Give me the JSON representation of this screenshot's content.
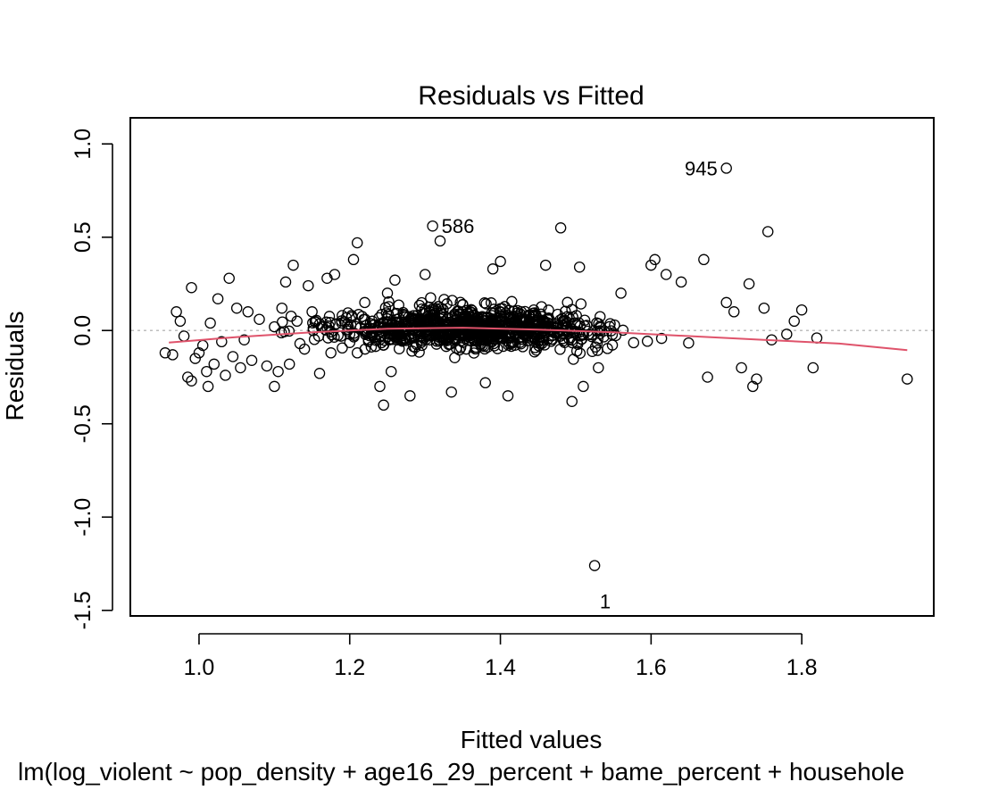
{
  "chart_data": {
    "type": "scatter",
    "title": "Residuals vs Fitted",
    "xlabel": "Fitted values",
    "ylabel": "Residuals",
    "subtitle": "lm(log_violent ~ pop_density + age16_29_percent + bame_percent + househole",
    "xlim": [
      0.91,
      1.974
    ],
    "ylim": [
      -1.525,
      1.135
    ],
    "x_ticks": [
      1.0,
      1.2,
      1.4,
      1.6,
      1.8
    ],
    "x_tick_labels": [
      "1.0",
      "1.2",
      "1.4",
      "1.6",
      "1.8"
    ],
    "y_ticks": [
      -1.5,
      -1.0,
      -0.5,
      0.0,
      0.5,
      1.0
    ],
    "y_tick_labels": [
      "-1.5",
      "-1.0",
      "-0.5",
      "0.0",
      "0.5",
      "1.0"
    ],
    "grid": false,
    "reference_line": {
      "y": 0,
      "style": "dotted",
      "color": "#bebebe"
    },
    "smooth_line": {
      "color": "#df536b",
      "x": [
        0.96,
        1.05,
        1.15,
        1.25,
        1.35,
        1.45,
        1.55,
        1.65,
        1.75,
        1.85,
        1.94
      ],
      "y": [
        -0.065,
        -0.035,
        -0.01,
        0.01,
        0.015,
        0.005,
        -0.01,
        -0.03,
        -0.05,
        -0.07,
        -0.105
      ]
    },
    "labeled_points": [
      {
        "label": "945",
        "x": 1.7,
        "y": 0.87
      },
      {
        "label": "586",
        "x": 1.31,
        "y": 0.56
      },
      {
        "label": "1",
        "x": 1.525,
        "y": -1.26
      }
    ],
    "points": {
      "x": [
        0.955,
        0.965,
        0.97,
        0.975,
        0.98,
        0.985,
        0.99,
        0.99,
        0.995,
        1.0,
        1.005,
        1.01,
        1.012,
        1.015,
        1.02,
        1.025,
        1.03,
        1.035,
        1.04,
        1.045,
        1.05,
        1.055,
        1.06,
        1.065,
        1.07,
        1.08,
        1.09,
        1.1,
        1.1,
        1.105,
        1.11,
        1.115,
        1.12,
        1.125,
        1.13,
        1.14,
        1.145,
        1.15,
        1.16,
        1.17,
        1.175,
        1.18,
        1.19,
        1.2,
        1.205,
        1.21,
        1.21,
        1.22,
        1.23,
        1.24,
        1.245,
        1.25,
        1.255,
        1.26,
        1.28,
        1.3,
        1.32,
        1.335,
        1.35,
        1.38,
        1.39,
        1.4,
        1.41,
        1.46,
        1.48,
        1.495,
        1.505,
        1.51,
        1.53,
        1.56,
        1.6,
        1.605,
        1.62,
        1.64,
        1.67,
        1.675,
        1.7,
        1.71,
        1.72,
        1.73,
        1.735,
        1.74,
        1.75,
        1.755,
        1.76,
        1.78,
        1.79,
        1.8,
        1.815,
        1.82,
        1.94
      ],
      "y": [
        -0.12,
        -0.13,
        0.1,
        0.05,
        -0.03,
        -0.25,
        0.23,
        -0.27,
        -0.15,
        -0.12,
        -0.08,
        -0.22,
        -0.3,
        0.04,
        -0.18,
        0.17,
        -0.06,
        -0.24,
        0.28,
        -0.14,
        0.12,
        -0.2,
        -0.05,
        0.1,
        -0.16,
        0.06,
        -0.19,
        -0.3,
        0.02,
        -0.22,
        0.12,
        0.26,
        -0.18,
        0.35,
        0.05,
        -0.1,
        0.24,
        0.1,
        -0.23,
        0.28,
        -0.12,
        0.3,
        0.08,
        -0.02,
        0.38,
        0.47,
        -0.12,
        0.15,
        0.05,
        -0.3,
        -0.4,
        0.2,
        -0.22,
        0.27,
        -0.35,
        0.3,
        0.48,
        -0.33,
        0.1,
        -0.28,
        0.33,
        0.37,
        -0.35,
        0.35,
        0.55,
        -0.38,
        0.34,
        -0.3,
        -0.2,
        0.2,
        0.35,
        0.38,
        0.3,
        0.26,
        0.38,
        -0.25,
        0.15,
        0.1,
        -0.2,
        0.25,
        -0.3,
        -0.26,
        0.12,
        0.53,
        -0.05,
        -0.02,
        0.05,
        0.11,
        -0.2,
        -0.04,
        -0.26
      ],
      "cluster_note": ""
    }
  }
}
